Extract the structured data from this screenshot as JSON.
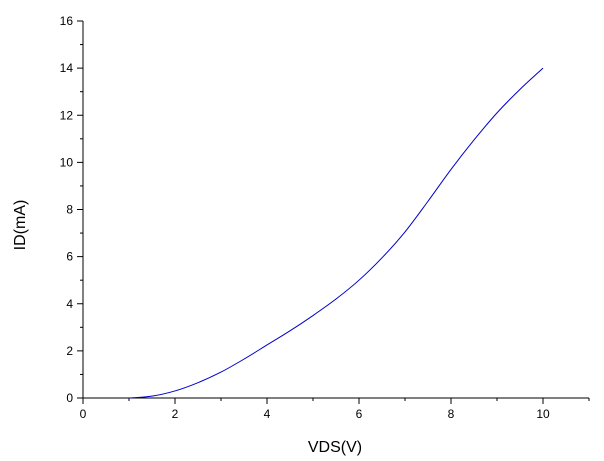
{
  "chart_data": {
    "type": "line",
    "title": "",
    "xlabel": "VDS(V)",
    "ylabel": "ID(mA)",
    "xlim": [
      0,
      11
    ],
    "ylim": [
      0,
      16
    ],
    "xticks": [
      "0",
      "2",
      "4",
      "6",
      "8",
      "10"
    ],
    "yticks": [
      "0",
      "2",
      "4",
      "6",
      "8",
      "10",
      "12",
      "14",
      "16"
    ],
    "grid": false,
    "legend": "none",
    "line_color": "#0000cc",
    "series": [
      {
        "x": [
          1.0,
          1.5,
          2.0,
          2.5,
          3.0,
          3.5,
          4.0,
          4.5,
          5.0,
          5.5,
          6.0,
          6.5,
          7.0,
          7.5,
          8.0,
          8.5,
          9.0,
          9.5,
          10.0
        ],
        "values": [
          0.0,
          0.08,
          0.3,
          0.65,
          1.1,
          1.65,
          2.25,
          2.85,
          3.5,
          4.2,
          5.0,
          5.95,
          7.05,
          8.35,
          9.7,
          10.95,
          12.1,
          13.1,
          14.0
        ]
      }
    ]
  }
}
